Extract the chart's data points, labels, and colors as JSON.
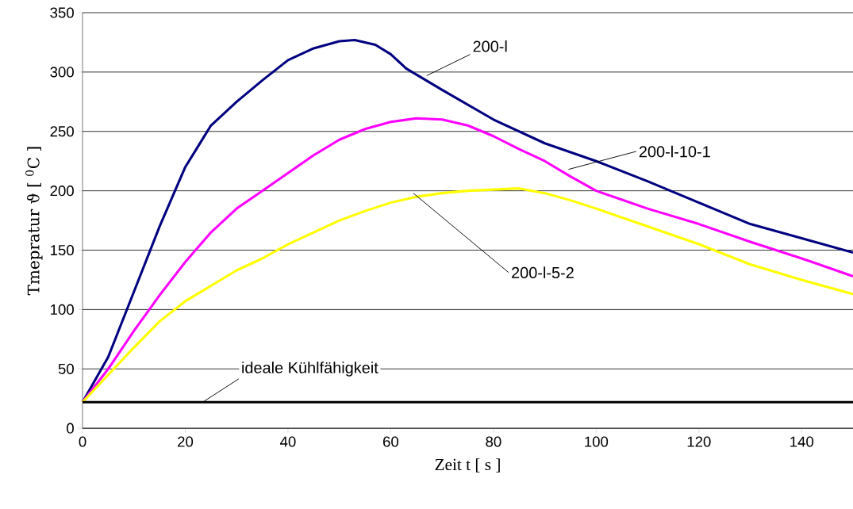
{
  "chart_data": {
    "type": "line",
    "xlabel": "Zeit t [ s ]",
    "ylabel": "Tmepratur ϑ [ $^{0}$C ]",
    "xlim": [
      0,
      150
    ],
    "ylim": [
      0,
      350
    ],
    "xticks": [
      0,
      20,
      40,
      60,
      80,
      100,
      120,
      140
    ],
    "yticks": [
      0,
      50,
      100,
      150,
      200,
      250,
      300,
      350
    ],
    "grid": "y",
    "marker": "none",
    "line_style": "solid",
    "series": [
      {
        "color": "#000080",
        "x": [
          0,
          5,
          10,
          15,
          20,
          25,
          30,
          35,
          40,
          45,
          50,
          53,
          57,
          60,
          63,
          70,
          80,
          90,
          100,
          110,
          120,
          130,
          140,
          150
        ],
        "values": [
          22,
          60,
          115,
          170,
          220,
          255,
          275,
          293,
          310,
          320,
          326,
          327,
          323,
          315,
          303,
          285,
          260,
          240,
          225,
          208,
          190,
          172,
          160,
          148
        ]
      },
      {
        "color": "#ff00ff",
        "x": [
          0,
          5,
          10,
          15,
          20,
          25,
          30,
          35,
          40,
          45,
          50,
          55,
          60,
          65,
          70,
          75,
          80,
          85,
          90,
          95,
          100,
          110,
          120,
          130,
          140,
          150
        ],
        "values": [
          22,
          50,
          82,
          112,
          140,
          165,
          185,
          200,
          215,
          230,
          243,
          252,
          258,
          261,
          260,
          255,
          246,
          235,
          225,
          212,
          200,
          185,
          172,
          157,
          143,
          128
        ]
      },
      {
        "color": "#ffff00",
        "x": [
          0,
          5,
          10,
          15,
          20,
          25,
          30,
          35,
          40,
          45,
          50,
          55,
          60,
          65,
          70,
          75,
          80,
          85,
          90,
          95,
          100,
          110,
          120,
          130,
          140,
          150
        ],
        "values": [
          22,
          45,
          68,
          90,
          107,
          120,
          133,
          143,
          155,
          165,
          175,
          183,
          190,
          195,
          198,
          200,
          201,
          202,
          198,
          192,
          185,
          170,
          155,
          138,
          125,
          113
        ]
      },
      {
        "color": "#000000",
        "x": [
          0,
          150
        ],
        "values": [
          22,
          22
        ]
      }
    ],
    "annotations": [
      {
        "text": "200-l",
        "x": 67,
        "y": 297
      },
      {
        "text": "200-l-10-1",
        "x": 94.6,
        "y": 218
      },
      {
        "text": "200-l-5-2",
        "x": 64.4,
        "y": 198
      },
      {
        "text": "ideale Kühlfähigkeit",
        "x": 23.4,
        "y": 22
      }
    ]
  }
}
